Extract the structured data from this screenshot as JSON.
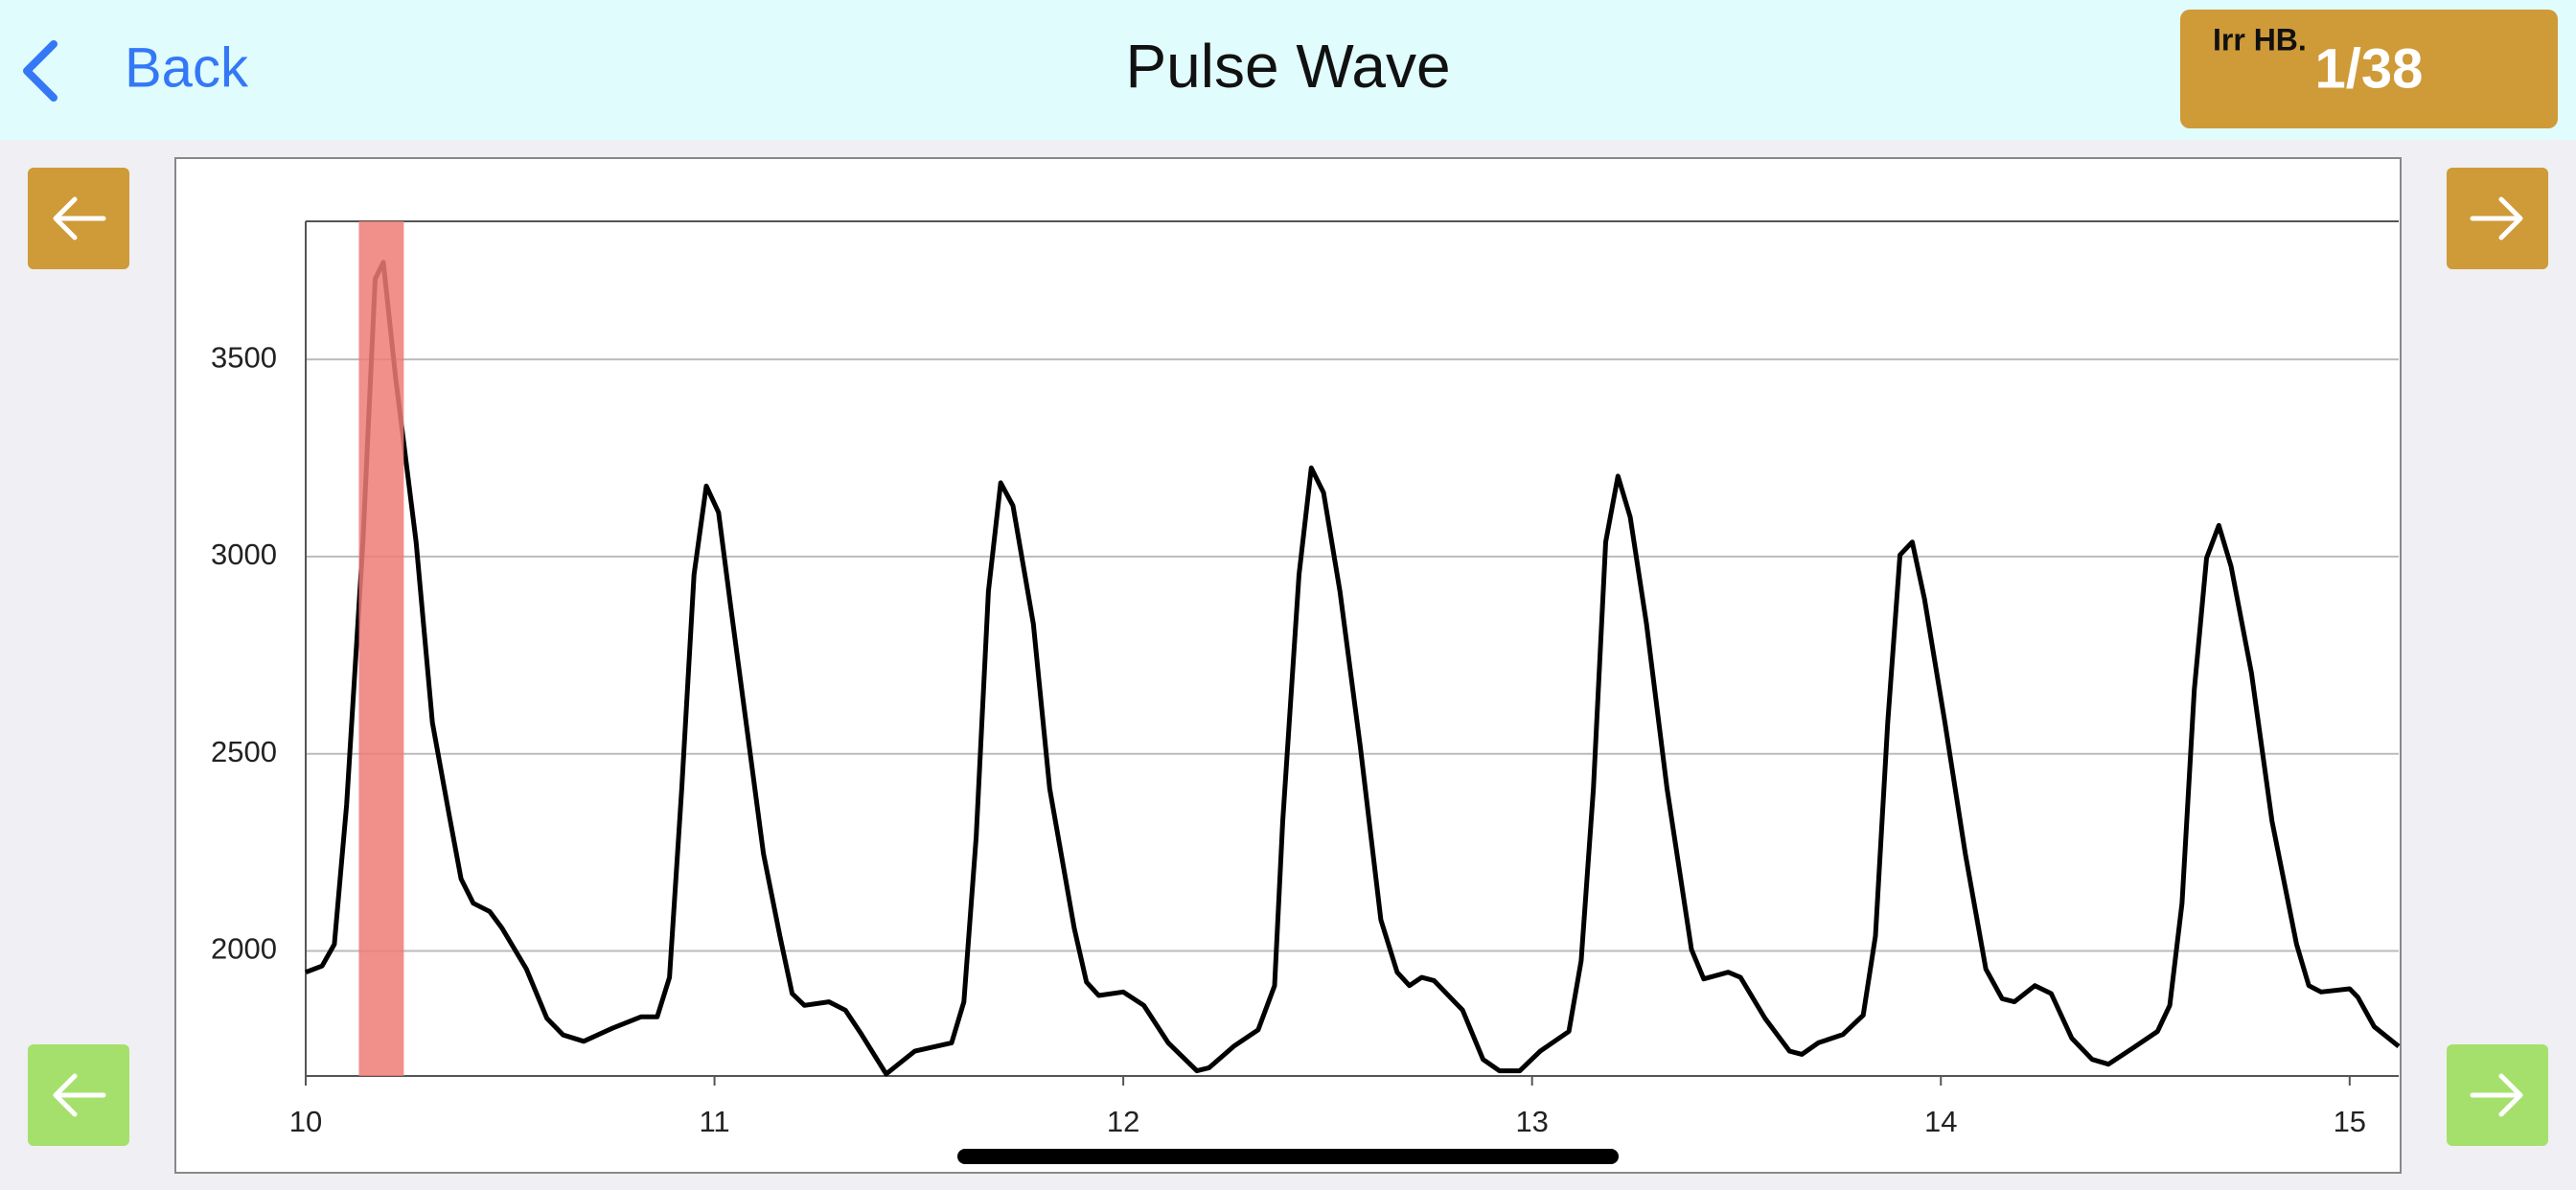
{
  "header": {
    "back": "Back",
    "title": "Pulse Wave",
    "badge_label": "Irr HB.",
    "badge_value": "1/38"
  },
  "chart_data": {
    "type": "line",
    "color": "#000000",
    "grid": true,
    "xlim": [
      10,
      15.12
    ],
    "ylim": [
      1683,
      3850
    ],
    "xticks": [
      10,
      11,
      12,
      13,
      14,
      15
    ],
    "yticks": [
      2000,
      2500,
      3000,
      3500
    ],
    "highlight": [
      10.13,
      10.24
    ],
    "highlight_color": "#ee7b75",
    "x": [
      10.0,
      10.04,
      10.07,
      10.1,
      10.14,
      10.17,
      10.19,
      10.22,
      10.27,
      10.31,
      10.35,
      10.38,
      10.41,
      10.45,
      10.48,
      10.54,
      10.59,
      10.63,
      10.68,
      10.75,
      10.82,
      10.86,
      10.89,
      10.92,
      10.95,
      10.98,
      11.01,
      11.04,
      11.08,
      11.12,
      11.16,
      11.19,
      11.22,
      11.28,
      11.32,
      11.36,
      11.42,
      11.45,
      11.49,
      11.58,
      11.61,
      11.64,
      11.67,
      11.7,
      11.73,
      11.78,
      11.82,
      11.88,
      11.91,
      11.94,
      12.0,
      12.05,
      12.11,
      12.18,
      12.21,
      12.27,
      12.33,
      12.37,
      12.39,
      12.43,
      12.46,
      12.49,
      12.53,
      12.58,
      12.63,
      12.67,
      12.7,
      12.73,
      12.76,
      12.83,
      12.88,
      12.92,
      12.97,
      13.02,
      13.09,
      13.12,
      13.15,
      13.18,
      13.21,
      13.24,
      13.28,
      13.33,
      13.39,
      13.42,
      13.48,
      13.51,
      13.57,
      13.63,
      13.66,
      13.7,
      13.76,
      13.81,
      13.84,
      13.87,
      13.9,
      13.93,
      13.96,
      14.01,
      14.06,
      14.11,
      14.15,
      14.18,
      14.23,
      14.27,
      14.32,
      14.37,
      14.41,
      14.47,
      14.53,
      14.56,
      14.59,
      14.62,
      14.65,
      14.68,
      14.71,
      14.76,
      14.81,
      14.87,
      14.9,
      14.93,
      15.0,
      15.02,
      15.06,
      15.12
    ],
    "values": [
      1946,
      1962,
      2017,
      2371,
      3037,
      3704,
      3746,
      3454,
      3037,
      2579,
      2350,
      2183,
      2121,
      2100,
      2058,
      1954,
      1829,
      1787,
      1771,
      1804,
      1833,
      1833,
      1933,
      2412,
      2954,
      3179,
      3112,
      2871,
      2558,
      2246,
      2038,
      1892,
      1862,
      1871,
      1850,
      1788,
      1688,
      1713,
      1746,
      1767,
      1871,
      2288,
      2912,
      3187,
      3129,
      2829,
      2412,
      2058,
      1921,
      1887,
      1896,
      1862,
      1767,
      1696,
      1704,
      1758,
      1800,
      1912,
      2329,
      2954,
      3225,
      3162,
      2912,
      2517,
      2079,
      1946,
      1912,
      1933,
      1925,
      1850,
      1725,
      1696,
      1696,
      1746,
      1796,
      1975,
      2412,
      3037,
      3204,
      3100,
      2829,
      2412,
      2004,
      1929,
      1946,
      1933,
      1829,
      1746,
      1738,
      1767,
      1788,
      1837,
      2038,
      2579,
      3004,
      3037,
      2892,
      2579,
      2246,
      1954,
      1879,
      1871,
      1912,
      1892,
      1779,
      1725,
      1713,
      1754,
      1796,
      1862,
      2121,
      2662,
      2996,
      3079,
      2975,
      2704,
      2329,
      2017,
      1912,
      1896,
      1904,
      1883,
      1808,
      1758
    ]
  }
}
